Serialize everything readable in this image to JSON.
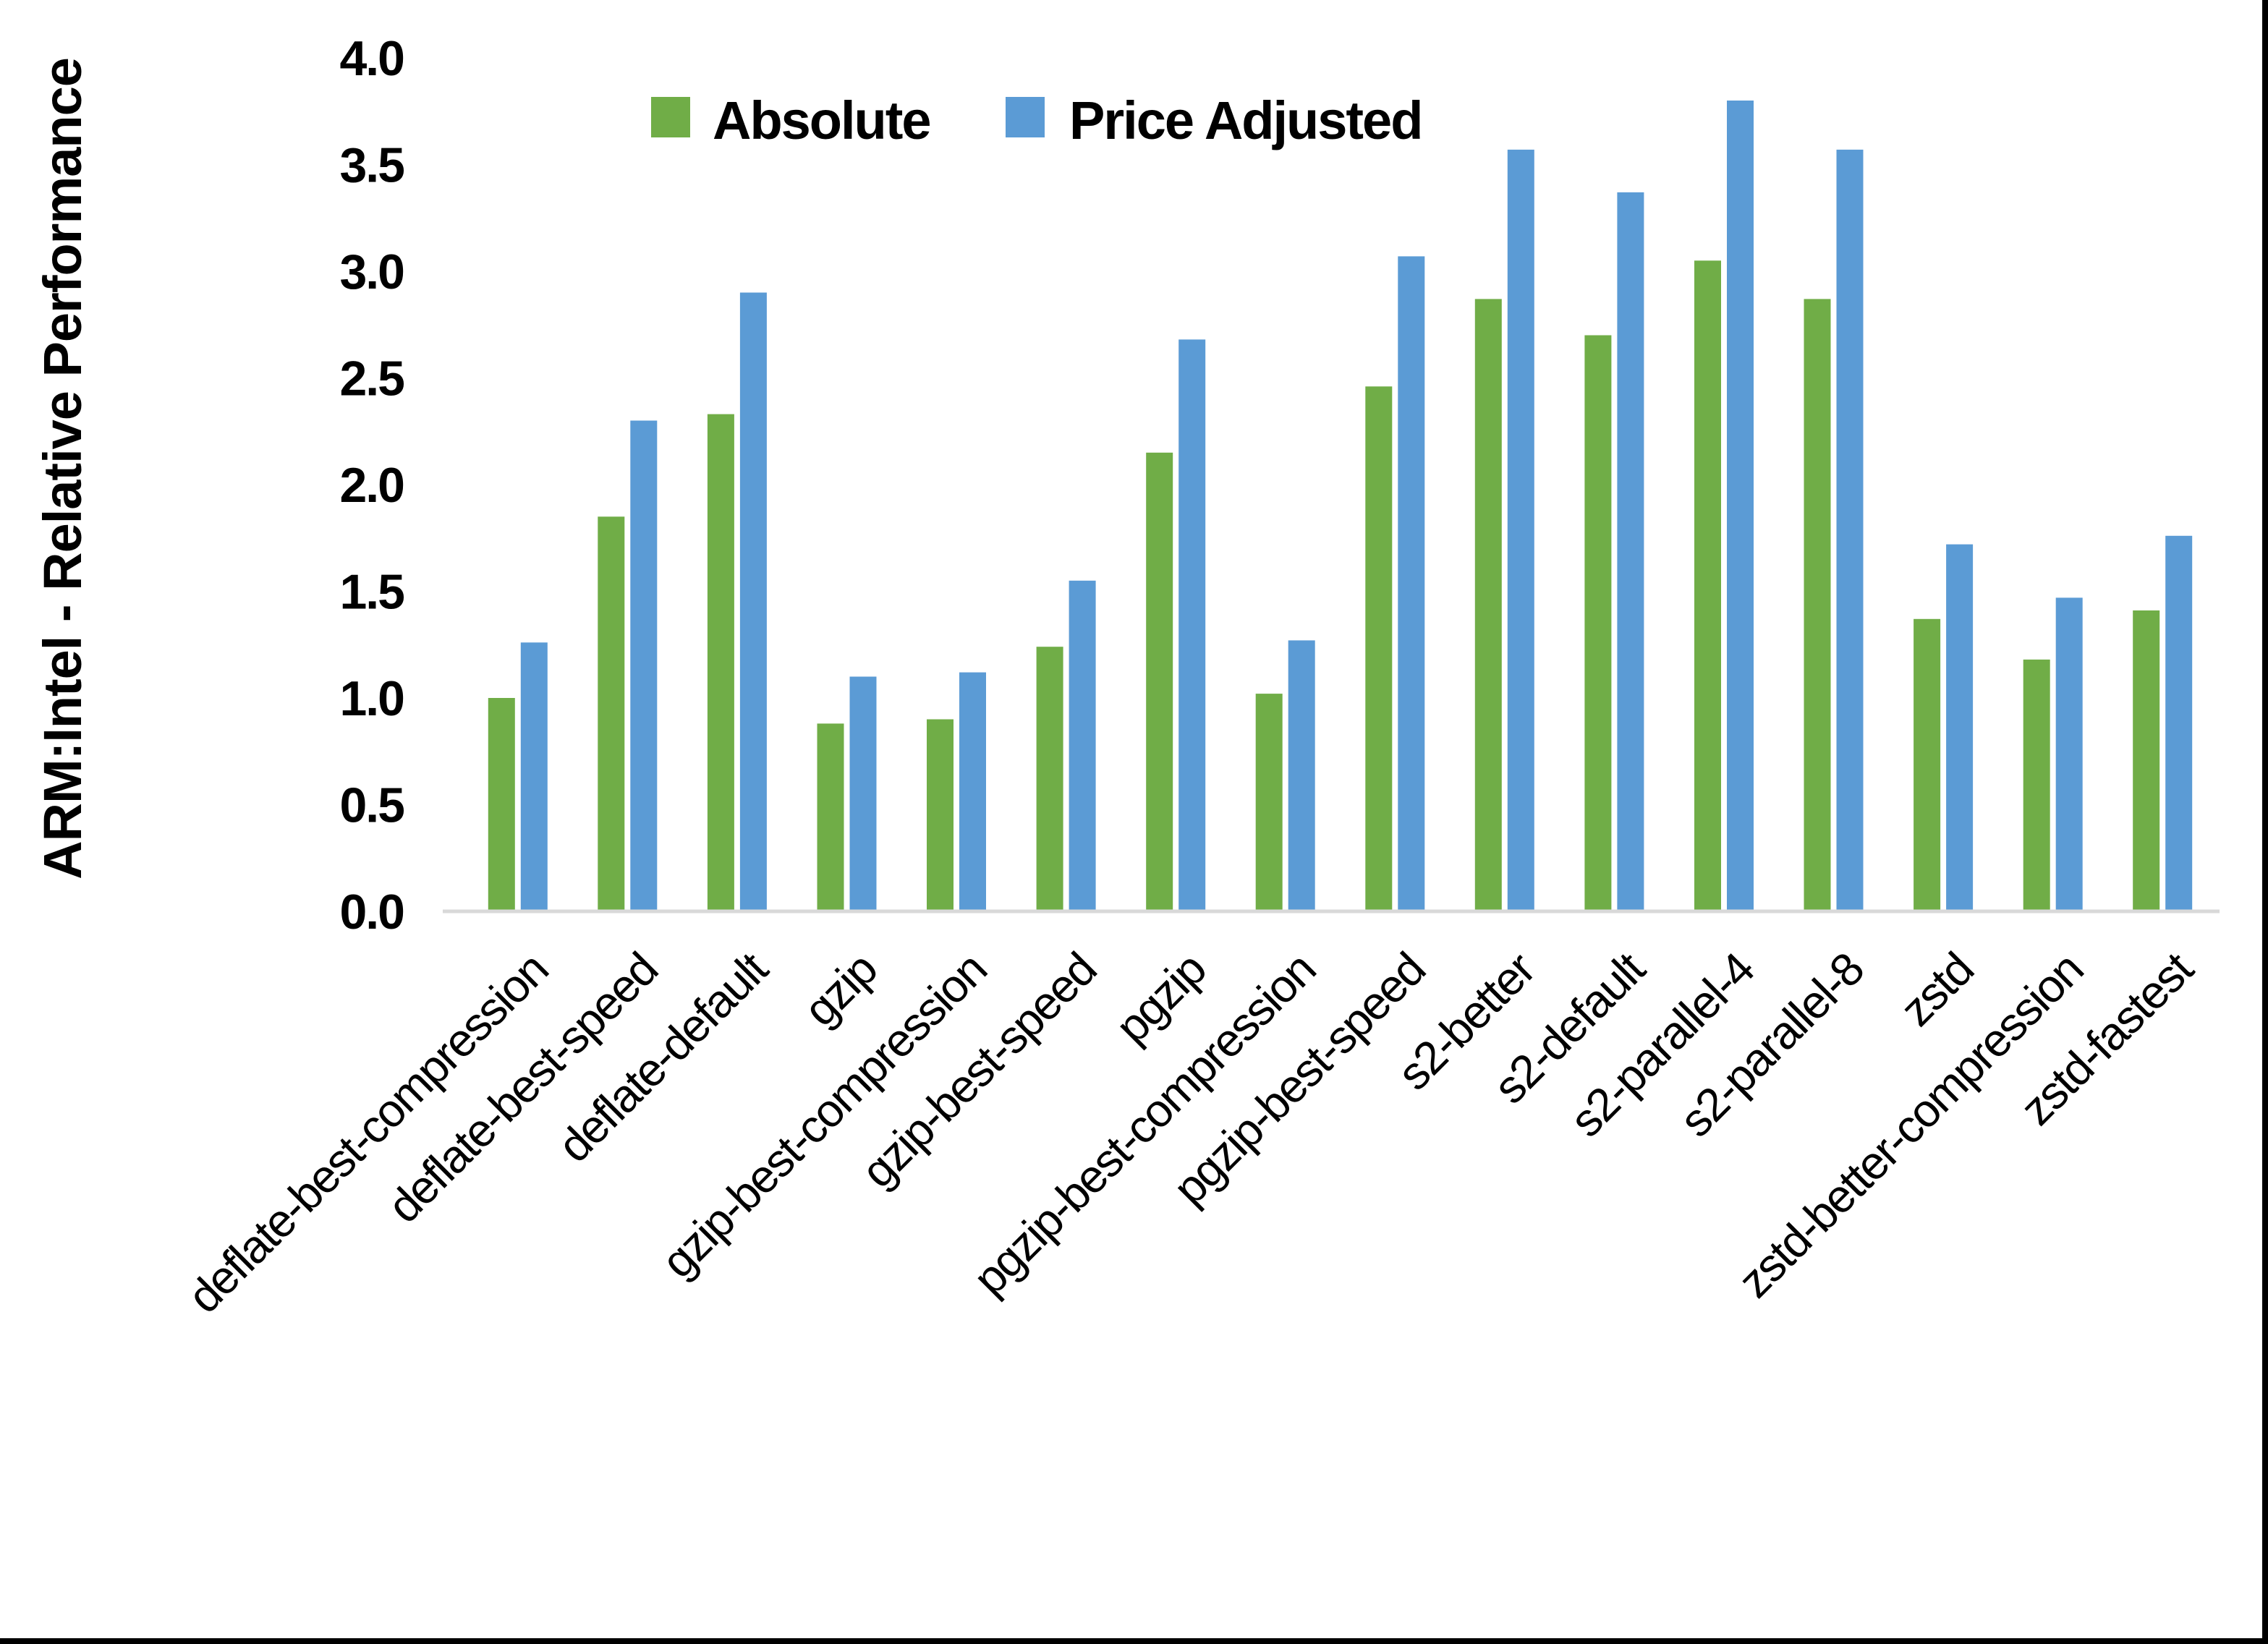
{
  "chart_data": {
    "type": "bar",
    "title": "",
    "xlabel": "",
    "ylabel": "ARM:Intel - Relative Performance",
    "ylim": [
      0.0,
      4.0
    ],
    "ytick_step": 0.5,
    "grid": false,
    "legend_position": "top-center",
    "categories": [
      "deflate-best-compression",
      "deflate-best-speed",
      "deflate-default",
      "gzip",
      "gzip-best-compression",
      "gzip-best-speed",
      "pgzip",
      "pgzip-best-compression",
      "pgzip-best-speed",
      "s2-better",
      "s2-default",
      "s2-parallel-4",
      "s2-parallel-8",
      "zstd",
      "zstd-better-compression",
      "zstd-fastest"
    ],
    "series": [
      {
        "name": "Absolute",
        "color": "#70AD47",
        "values": [
          1.0,
          1.85,
          2.33,
          0.88,
          0.9,
          1.24,
          2.15,
          1.02,
          2.46,
          2.87,
          2.7,
          3.05,
          2.87,
          1.37,
          1.18,
          1.41
        ]
      },
      {
        "name": "Price Adjusted",
        "color": "#5B9BD5",
        "values": [
          1.26,
          2.3,
          2.9,
          1.1,
          1.12,
          1.55,
          2.68,
          1.27,
          3.07,
          3.57,
          3.37,
          3.8,
          3.57,
          1.72,
          1.47,
          1.76
        ]
      }
    ],
    "axis_color": "#D9D9D9",
    "text_color": "#000000"
  },
  "frame": {
    "border_color": "#000000"
  }
}
